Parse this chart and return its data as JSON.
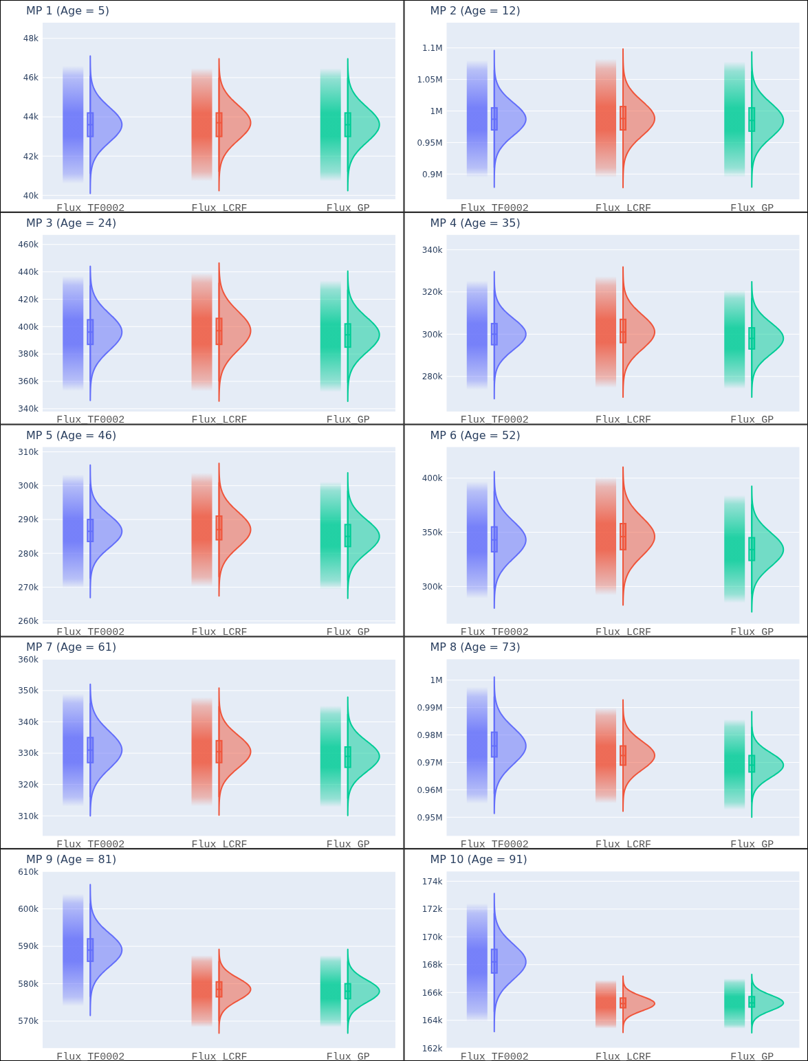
{
  "chart_data": [
    {
      "type": "box",
      "title": "MP 1 (Age = 5)",
      "categories": [
        "Flux_TF0002",
        "Flux_LCRF",
        "Flux_GP"
      ],
      "colors": [
        "#636efa",
        "#ef553b",
        "#00cc96"
      ],
      "grid": "y",
      "ylim": [
        39800,
        48800
      ],
      "yticks": [
        {
          "value": 40000,
          "label": "40k"
        },
        {
          "value": 42000,
          "label": "42k"
        },
        {
          "value": 44000,
          "label": "44k"
        },
        {
          "value": 46000,
          "label": "46k"
        },
        {
          "value": 48000,
          "label": "48k"
        }
      ],
      "boxes": [
        {
          "low": 41100,
          "q1": 43000,
          "median": 43600,
          "q3": 44200,
          "high": 46100
        },
        {
          "low": 41200,
          "q1": 43000,
          "median": 43700,
          "q3": 44200,
          "high": 46000
        },
        {
          "low": 41200,
          "q1": 43000,
          "median": 43600,
          "q3": 44200,
          "high": 46000
        }
      ]
    },
    {
      "type": "box",
      "title": "MP 2 (Age = 12)",
      "categories": [
        "Flux_TF0002",
        "Flux_LCRF",
        "Flux_GP"
      ],
      "colors": [
        "#636efa",
        "#ef553b",
        "#00cc96"
      ],
      "grid": "y",
      "ylim": [
        860000,
        1140000
      ],
      "yticks": [
        {
          "value": 900000,
          "label": "0.9M"
        },
        {
          "value": 950000,
          "label": "0.95M"
        },
        {
          "value": 1000000,
          "label": "1M"
        },
        {
          "value": 1050000,
          "label": "1.05M"
        },
        {
          "value": 1100000,
          "label": "1.1M"
        }
      ],
      "boxes": [
        {
          "low": 910000,
          "q1": 970000,
          "median": 987000,
          "q3": 1005000,
          "high": 1065000
        },
        {
          "low": 910000,
          "q1": 970000,
          "median": 988000,
          "q3": 1007000,
          "high": 1067000
        },
        {
          "low": 910000,
          "q1": 968000,
          "median": 985000,
          "q3": 1005000,
          "high": 1063000
        }
      ]
    },
    {
      "type": "box",
      "title": "MP 3 (Age = 24)",
      "categories": [
        "Flux_TF0002",
        "Flux_LCRF",
        "Flux_GP"
      ],
      "colors": [
        "#636efa",
        "#ef553b",
        "#00cc96"
      ],
      "grid": "y",
      "ylim": [
        338000,
        467000
      ],
      "yticks": [
        {
          "value": 340000,
          "label": "340k"
        },
        {
          "value": 360000,
          "label": "360k"
        },
        {
          "value": 380000,
          "label": "380k"
        },
        {
          "value": 400000,
          "label": "400k"
        },
        {
          "value": 420000,
          "label": "420k"
        },
        {
          "value": 440000,
          "label": "440k"
        },
        {
          "value": 460000,
          "label": "460k"
        }
      ],
      "boxes": [
        {
          "low": 360000,
          "q1": 387000,
          "median": 396000,
          "q3": 405000,
          "high": 430000
        },
        {
          "low": 360000,
          "q1": 387000,
          "median": 397000,
          "q3": 406000,
          "high": 432000
        },
        {
          "low": 359000,
          "q1": 385000,
          "median": 394000,
          "q3": 402000,
          "high": 427000
        }
      ]
    },
    {
      "type": "box",
      "title": "MP 4 (Age = 35)",
      "categories": [
        "Flux_TF0002",
        "Flux_LCRF",
        "Flux_GP"
      ],
      "colors": [
        "#636efa",
        "#ef553b",
        "#00cc96"
      ],
      "grid": "y",
      "ylim": [
        263400,
        347000
      ],
      "yticks": [
        {
          "value": 280000,
          "label": "280k"
        },
        {
          "value": 300000,
          "label": "300k"
        },
        {
          "value": 320000,
          "label": "320k"
        },
        {
          "value": 340000,
          "label": "340k"
        }
      ],
      "boxes": [
        {
          "low": 278000,
          "q1": 295000,
          "median": 300000,
          "q3": 305000,
          "high": 321000
        },
        {
          "low": 279000,
          "q1": 296000,
          "median": 301000,
          "q3": 307000,
          "high": 323000
        },
        {
          "low": 278000,
          "q1": 293000,
          "median": 298000,
          "q3": 303000,
          "high": 317000
        }
      ]
    },
    {
      "type": "box",
      "title": "MP 5 (Age = 46)",
      "categories": [
        "Flux_TF0002",
        "Flux_LCRF",
        "Flux_GP"
      ],
      "colors": [
        "#636efa",
        "#ef553b",
        "#00cc96"
      ],
      "grid": "y",
      "ylim": [
        259200,
        311400
      ],
      "yticks": [
        {
          "value": 260000,
          "label": "260k"
        },
        {
          "value": 270000,
          "label": "270k"
        },
        {
          "value": 280000,
          "label": "280k"
        },
        {
          "value": 290000,
          "label": "290k"
        },
        {
          "value": 300000,
          "label": "300k"
        },
        {
          "value": 310000,
          "label": "310k"
        }
      ],
      "boxes": [
        {
          "low": 272500,
          "q1": 283500,
          "median": 286500,
          "q3": 290000,
          "high": 300500
        },
        {
          "low": 273000,
          "q1": 284000,
          "median": 287000,
          "q3": 291000,
          "high": 301000
        },
        {
          "low": 272000,
          "q1": 282000,
          "median": 285000,
          "q3": 288500,
          "high": 298500
        }
      ]
    },
    {
      "type": "box",
      "title": "MP 6 (Age = 52)",
      "categories": [
        "Flux_TF0002",
        "Flux_LCRF",
        "Flux_GP"
      ],
      "colors": [
        "#636efa",
        "#ef553b",
        "#00cc96"
      ],
      "grid": "y",
      "ylim": [
        265600,
        428700
      ],
      "yticks": [
        {
          "value": 300000,
          "label": "300k"
        },
        {
          "value": 350000,
          "label": "350k"
        },
        {
          "value": 400000,
          "label": "400k"
        }
      ],
      "boxes": [
        {
          "low": 298000,
          "q1": 332000,
          "median": 343000,
          "q3": 355000,
          "high": 388000
        },
        {
          "low": 301000,
          "q1": 334000,
          "median": 346000,
          "q3": 358000,
          "high": 392000
        },
        {
          "low": 293000,
          "q1": 324000,
          "median": 334000,
          "q3": 345000,
          "high": 376000
        }
      ]
    },
    {
      "type": "box",
      "title": "MP 7 (Age = 61)",
      "categories": [
        "Flux_TF0002",
        "Flux_LCRF",
        "Flux_GP"
      ],
      "colors": [
        "#636efa",
        "#ef553b",
        "#00cc96"
      ],
      "grid": "y",
      "ylim": [
        303600,
        360000
      ],
      "yticks": [
        {
          "value": 310000,
          "label": "310k"
        },
        {
          "value": 320000,
          "label": "320k"
        },
        {
          "value": 330000,
          "label": "330k"
        },
        {
          "value": 340000,
          "label": "340k"
        },
        {
          "value": 350000,
          "label": "350k"
        },
        {
          "value": 360000,
          "label": "360k"
        }
      ],
      "boxes": [
        {
          "low": 316000,
          "q1": 327000,
          "median": 331000,
          "q3": 335000,
          "high": 346000
        },
        {
          "low": 316000,
          "q1": 327000,
          "median": 330500,
          "q3": 334000,
          "high": 345000
        },
        {
          "low": 315500,
          "q1": 325500,
          "median": 329000,
          "q3": 332000,
          "high": 342500
        }
      ]
    },
    {
      "type": "box",
      "title": "MP 8 (Age = 73)",
      "categories": [
        "Flux_TF0002",
        "Flux_LCRF",
        "Flux_GP"
      ],
      "colors": [
        "#636efa",
        "#ef553b",
        "#00cc96"
      ],
      "grid": "y",
      "ylim": [
        943200,
        1007600
      ],
      "yticks": [
        {
          "value": 950000,
          "label": "0.95M"
        },
        {
          "value": 960000,
          "label": "0.96M"
        },
        {
          "value": 970000,
          "label": "0.97M"
        },
        {
          "value": 980000,
          "label": "0.98M"
        },
        {
          "value": 990000,
          "label": "0.99M"
        },
        {
          "value": 1000000,
          "label": "1M"
        }
      ],
      "boxes": [
        {
          "low": 958500,
          "q1": 972000,
          "median": 976000,
          "q3": 981000,
          "high": 994000
        },
        {
          "low": 958000,
          "q1": 969000,
          "median": 972500,
          "q3": 976000,
          "high": 987000
        },
        {
          "low": 955500,
          "q1": 966500,
          "median": 969000,
          "q3": 972500,
          "high": 983000
        }
      ]
    },
    {
      "type": "box",
      "title": "MP 9 (Age = 81)",
      "categories": [
        "Flux_TF0002",
        "Flux_LCRF",
        "Flux_GP"
      ],
      "colors": [
        "#636efa",
        "#ef553b",
        "#00cc96"
      ],
      "grid": "y",
      "ylim": [
        562800,
        610000
      ],
      "yticks": [
        {
          "value": 570000,
          "label": "570k"
        },
        {
          "value": 580000,
          "label": "580k"
        },
        {
          "value": 590000,
          "label": "590k"
        },
        {
          "value": 600000,
          "label": "600k"
        },
        {
          "value": 610000,
          "label": "610k"
        }
      ],
      "boxes": [
        {
          "low": 576500,
          "q1": 586000,
          "median": 589000,
          "q3": 592000,
          "high": 601500
        },
        {
          "low": 570000,
          "q1": 576500,
          "median": 578500,
          "q3": 580500,
          "high": 586000
        },
        {
          "low": 570000,
          "q1": 576000,
          "median": 578000,
          "q3": 580000,
          "high": 586000
        }
      ]
    },
    {
      "type": "box",
      "title": "MP 10 (Age = 91)",
      "categories": [
        "Flux_TF0002",
        "Flux_LCRF",
        "Flux_GP"
      ],
      "colors": [
        "#636efa",
        "#ef553b",
        "#00cc96"
      ],
      "grid": "y",
      "ylim": [
        162000,
        174700
      ],
      "yticks": [
        {
          "value": 162000,
          "label": "162k"
        },
        {
          "value": 164000,
          "label": "164k"
        },
        {
          "value": 166000,
          "label": "166k"
        },
        {
          "value": 168000,
          "label": "168k"
        },
        {
          "value": 170000,
          "label": "170k"
        },
        {
          "value": 172000,
          "label": "172k"
        },
        {
          "value": 174000,
          "label": "174k"
        }
      ],
      "boxes": [
        {
          "low": 164600,
          "q1": 167400,
          "median": 168200,
          "q3": 169100,
          "high": 171700
        },
        {
          "low": 163700,
          "q1": 164900,
          "median": 165200,
          "q3": 165600,
          "high": 166600
        },
        {
          "low": 163700,
          "q1": 164950,
          "median": 165250,
          "q3": 165700,
          "high": 166700
        }
      ]
    }
  ]
}
